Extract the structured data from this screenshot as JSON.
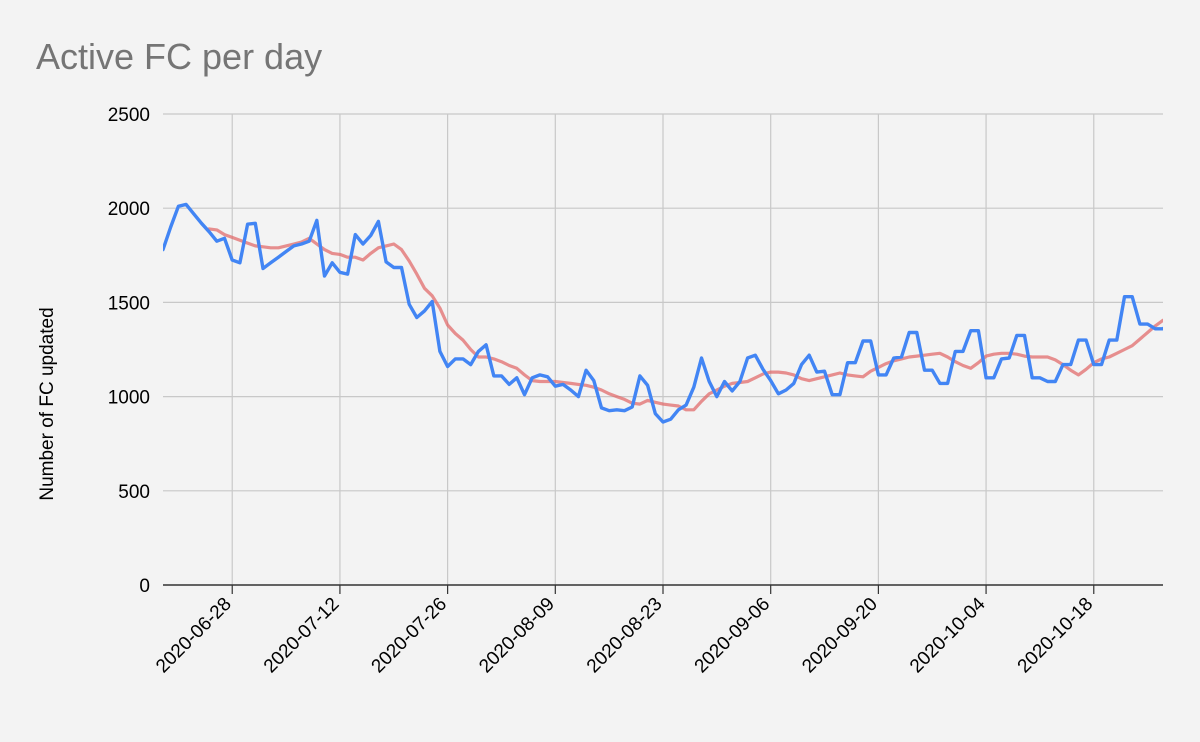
{
  "chart_data": {
    "type": "line",
    "title": "Active FC per day",
    "xlabel": "",
    "ylabel": "Number of FC updated",
    "ylim": [
      0,
      2500
    ],
    "yticks": [
      0,
      500,
      1000,
      1500,
      2000,
      2500
    ],
    "xlim": [
      "2020-06-19",
      "2020-10-27"
    ],
    "xticks": [
      "2020-06-28",
      "2020-07-12",
      "2020-07-26",
      "2020-08-09",
      "2020-08-23",
      "2020-09-06",
      "2020-09-20",
      "2020-10-04",
      "2020-10-18"
    ],
    "grid": true,
    "legend": "none",
    "series": [
      {
        "color": "#4285f4",
        "points": [
          [
            "2020-06-19",
            1780
          ],
          [
            "2020-06-20",
            1900
          ],
          [
            "2020-06-21",
            2010
          ],
          [
            "2020-06-22",
            2020
          ],
          [
            "2020-06-23",
            1970
          ],
          [
            "2020-06-24",
            1920
          ],
          [
            "2020-06-25",
            1875
          ],
          [
            "2020-06-26",
            1825
          ],
          [
            "2020-06-27",
            1840
          ],
          [
            "2020-06-28",
            1725
          ],
          [
            "2020-06-29",
            1710
          ],
          [
            "2020-06-30",
            1915
          ],
          [
            "2020-07-01",
            1920
          ],
          [
            "2020-07-02",
            1680
          ],
          [
            "2020-07-03",
            1710
          ],
          [
            "2020-07-04",
            1740
          ],
          [
            "2020-07-05",
            1770
          ],
          [
            "2020-07-06",
            1800
          ],
          [
            "2020-07-07",
            1810
          ],
          [
            "2020-07-08",
            1825
          ],
          [
            "2020-07-09",
            1935
          ],
          [
            "2020-07-10",
            1640
          ],
          [
            "2020-07-11",
            1710
          ],
          [
            "2020-07-12",
            1660
          ],
          [
            "2020-07-13",
            1650
          ],
          [
            "2020-07-14",
            1860
          ],
          [
            "2020-07-15",
            1810
          ],
          [
            "2020-07-16",
            1855
          ],
          [
            "2020-07-17",
            1930
          ],
          [
            "2020-07-18",
            1715
          ],
          [
            "2020-07-19",
            1685
          ],
          [
            "2020-07-20",
            1685
          ],
          [
            "2020-07-21",
            1490
          ],
          [
            "2020-07-22",
            1420
          ],
          [
            "2020-07-23",
            1455
          ],
          [
            "2020-07-24",
            1505
          ],
          [
            "2020-07-25",
            1240
          ],
          [
            "2020-07-26",
            1160
          ],
          [
            "2020-07-27",
            1200
          ],
          [
            "2020-07-28",
            1200
          ],
          [
            "2020-07-29",
            1170
          ],
          [
            "2020-07-30",
            1240
          ],
          [
            "2020-07-31",
            1275
          ],
          [
            "2020-08-01",
            1110
          ],
          [
            "2020-08-02",
            1110
          ],
          [
            "2020-08-03",
            1065
          ],
          [
            "2020-08-04",
            1100
          ],
          [
            "2020-08-05",
            1010
          ],
          [
            "2020-08-06",
            1100
          ],
          [
            "2020-08-07",
            1115
          ],
          [
            "2020-08-08",
            1105
          ],
          [
            "2020-08-09",
            1055
          ],
          [
            "2020-08-10",
            1065
          ],
          [
            "2020-08-11",
            1035
          ],
          [
            "2020-08-12",
            1000
          ],
          [
            "2020-08-13",
            1140
          ],
          [
            "2020-08-14",
            1085
          ],
          [
            "2020-08-15",
            940
          ],
          [
            "2020-08-16",
            925
          ],
          [
            "2020-08-17",
            930
          ],
          [
            "2020-08-18",
            925
          ],
          [
            "2020-08-19",
            945
          ],
          [
            "2020-08-20",
            1110
          ],
          [
            "2020-08-21",
            1060
          ],
          [
            "2020-08-22",
            910
          ],
          [
            "2020-08-23",
            865
          ],
          [
            "2020-08-24",
            880
          ],
          [
            "2020-08-25",
            930
          ],
          [
            "2020-08-26",
            955
          ],
          [
            "2020-08-27",
            1050
          ],
          [
            "2020-08-28",
            1205
          ],
          [
            "2020-08-29",
            1080
          ],
          [
            "2020-08-30",
            1000
          ],
          [
            "2020-08-31",
            1080
          ],
          [
            "2020-09-01",
            1030
          ],
          [
            "2020-09-02",
            1080
          ],
          [
            "2020-09-03",
            1205
          ],
          [
            "2020-09-04",
            1220
          ],
          [
            "2020-09-05",
            1145
          ],
          [
            "2020-09-06",
            1085
          ],
          [
            "2020-09-07",
            1015
          ],
          [
            "2020-09-08",
            1035
          ],
          [
            "2020-09-09",
            1070
          ],
          [
            "2020-09-10",
            1170
          ],
          [
            "2020-09-11",
            1220
          ],
          [
            "2020-09-12",
            1130
          ],
          [
            "2020-09-13",
            1135
          ],
          [
            "2020-09-14",
            1010
          ],
          [
            "2020-09-15",
            1010
          ],
          [
            "2020-09-16",
            1180
          ],
          [
            "2020-09-17",
            1180
          ],
          [
            "2020-09-18",
            1295
          ],
          [
            "2020-09-19",
            1295
          ],
          [
            "2020-09-20",
            1115
          ],
          [
            "2020-09-21",
            1115
          ],
          [
            "2020-09-22",
            1205
          ],
          [
            "2020-09-23",
            1210
          ],
          [
            "2020-09-24",
            1340
          ],
          [
            "2020-09-25",
            1340
          ],
          [
            "2020-09-26",
            1140
          ],
          [
            "2020-09-27",
            1140
          ],
          [
            "2020-09-28",
            1070
          ],
          [
            "2020-09-29",
            1070
          ],
          [
            "2020-09-30",
            1240
          ],
          [
            "2020-10-01",
            1240
          ],
          [
            "2020-10-02",
            1350
          ],
          [
            "2020-10-03",
            1350
          ],
          [
            "2020-10-04",
            1100
          ],
          [
            "2020-10-05",
            1100
          ],
          [
            "2020-10-06",
            1200
          ],
          [
            "2020-10-07",
            1205
          ],
          [
            "2020-10-08",
            1325
          ],
          [
            "2020-10-09",
            1325
          ],
          [
            "2020-10-10",
            1100
          ],
          [
            "2020-10-11",
            1100
          ],
          [
            "2020-10-12",
            1080
          ],
          [
            "2020-10-13",
            1080
          ],
          [
            "2020-10-14",
            1170
          ],
          [
            "2020-10-15",
            1170
          ],
          [
            "2020-10-16",
            1300
          ],
          [
            "2020-10-17",
            1300
          ],
          [
            "2020-10-18",
            1170
          ],
          [
            "2020-10-19",
            1170
          ],
          [
            "2020-10-20",
            1300
          ],
          [
            "2020-10-21",
            1300
          ],
          [
            "2020-10-22",
            1530
          ],
          [
            "2020-10-23",
            1530
          ],
          [
            "2020-10-24",
            1385
          ],
          [
            "2020-10-25",
            1385
          ],
          [
            "2020-10-26",
            1360
          ],
          [
            "2020-10-27",
            1360
          ],
          [
            "2020-10-28",
            1390
          ],
          [
            "2020-10-29",
            1385
          ]
        ]
      },
      {
        "color": "#e06666",
        "points": [
          [
            "2020-06-25",
            1890
          ],
          [
            "2020-06-26",
            1885
          ],
          [
            "2020-06-27",
            1860
          ],
          [
            "2020-06-28",
            1845
          ],
          [
            "2020-06-29",
            1830
          ],
          [
            "2020-06-30",
            1815
          ],
          [
            "2020-07-01",
            1800
          ],
          [
            "2020-07-02",
            1795
          ],
          [
            "2020-07-03",
            1790
          ],
          [
            "2020-07-04",
            1790
          ],
          [
            "2020-07-05",
            1800
          ],
          [
            "2020-07-06",
            1810
          ],
          [
            "2020-07-07",
            1820
          ],
          [
            "2020-07-08",
            1840
          ],
          [
            "2020-07-09",
            1810
          ],
          [
            "2020-07-10",
            1780
          ],
          [
            "2020-07-11",
            1760
          ],
          [
            "2020-07-12",
            1755
          ],
          [
            "2020-07-13",
            1740
          ],
          [
            "2020-07-14",
            1740
          ],
          [
            "2020-07-15",
            1725
          ],
          [
            "2020-07-16",
            1760
          ],
          [
            "2020-07-17",
            1790
          ],
          [
            "2020-07-18",
            1800
          ],
          [
            "2020-07-19",
            1810
          ],
          [
            "2020-07-20",
            1780
          ],
          [
            "2020-07-21",
            1720
          ],
          [
            "2020-07-22",
            1650
          ],
          [
            "2020-07-23",
            1575
          ],
          [
            "2020-07-24",
            1535
          ],
          [
            "2020-07-25",
            1470
          ],
          [
            "2020-07-26",
            1380
          ],
          [
            "2020-07-27",
            1335
          ],
          [
            "2020-07-28",
            1300
          ],
          [
            "2020-07-29",
            1250
          ],
          [
            "2020-07-30",
            1210
          ],
          [
            "2020-07-31",
            1210
          ],
          [
            "2020-08-01",
            1200
          ],
          [
            "2020-08-02",
            1185
          ],
          [
            "2020-08-03",
            1165
          ],
          [
            "2020-08-04",
            1150
          ],
          [
            "2020-08-05",
            1115
          ],
          [
            "2020-08-06",
            1085
          ],
          [
            "2020-08-07",
            1080
          ],
          [
            "2020-08-08",
            1080
          ],
          [
            "2020-08-09",
            1080
          ],
          [
            "2020-08-10",
            1075
          ],
          [
            "2020-08-11",
            1070
          ],
          [
            "2020-08-12",
            1065
          ],
          [
            "2020-08-13",
            1060
          ],
          [
            "2020-08-14",
            1050
          ],
          [
            "2020-08-15",
            1035
          ],
          [
            "2020-08-16",
            1015
          ],
          [
            "2020-08-17",
            1000
          ],
          [
            "2020-08-18",
            985
          ],
          [
            "2020-08-19",
            965
          ],
          [
            "2020-08-20",
            960
          ],
          [
            "2020-08-21",
            980
          ],
          [
            "2020-08-22",
            970
          ],
          [
            "2020-08-23",
            960
          ],
          [
            "2020-08-24",
            955
          ],
          [
            "2020-08-25",
            950
          ],
          [
            "2020-08-26",
            930
          ],
          [
            "2020-08-27",
            930
          ],
          [
            "2020-08-28",
            975
          ],
          [
            "2020-08-29",
            1015
          ],
          [
            "2020-08-30",
            1035
          ],
          [
            "2020-08-31",
            1055
          ],
          [
            "2020-09-01",
            1070
          ],
          [
            "2020-09-02",
            1075
          ],
          [
            "2020-09-03",
            1080
          ],
          [
            "2020-09-04",
            1100
          ],
          [
            "2020-09-05",
            1120
          ],
          [
            "2020-09-06",
            1130
          ],
          [
            "2020-09-07",
            1130
          ],
          [
            "2020-09-08",
            1125
          ],
          [
            "2020-09-09",
            1115
          ],
          [
            "2020-09-10",
            1095
          ],
          [
            "2020-09-11",
            1085
          ],
          [
            "2020-09-12",
            1095
          ],
          [
            "2020-09-13",
            1105
          ],
          [
            "2020-09-14",
            1115
          ],
          [
            "2020-09-15",
            1125
          ],
          [
            "2020-09-16",
            1115
          ],
          [
            "2020-09-17",
            1110
          ],
          [
            "2020-09-18",
            1105
          ],
          [
            "2020-09-19",
            1135
          ],
          [
            "2020-09-20",
            1155
          ],
          [
            "2020-09-21",
            1175
          ],
          [
            "2020-09-22",
            1190
          ],
          [
            "2020-09-23",
            1200
          ],
          [
            "2020-09-24",
            1210
          ],
          [
            "2020-09-25",
            1215
          ],
          [
            "2020-09-26",
            1220
          ],
          [
            "2020-09-27",
            1225
          ],
          [
            "2020-09-28",
            1230
          ],
          [
            "2020-09-29",
            1210
          ],
          [
            "2020-09-30",
            1185
          ],
          [
            "2020-10-01",
            1165
          ],
          [
            "2020-10-02",
            1150
          ],
          [
            "2020-10-03",
            1180
          ],
          [
            "2020-10-04",
            1215
          ],
          [
            "2020-10-05",
            1225
          ],
          [
            "2020-10-06",
            1230
          ],
          [
            "2020-10-07",
            1230
          ],
          [
            "2020-10-08",
            1225
          ],
          [
            "2020-10-09",
            1215
          ],
          [
            "2020-10-10",
            1210
          ],
          [
            "2020-10-11",
            1210
          ],
          [
            "2020-10-12",
            1210
          ],
          [
            "2020-10-13",
            1195
          ],
          [
            "2020-10-14",
            1170
          ],
          [
            "2020-10-15",
            1140
          ],
          [
            "2020-10-16",
            1115
          ],
          [
            "2020-10-17",
            1145
          ],
          [
            "2020-10-18",
            1180
          ],
          [
            "2020-10-19",
            1200
          ],
          [
            "2020-10-20",
            1210
          ],
          [
            "2020-10-21",
            1230
          ],
          [
            "2020-10-22",
            1250
          ],
          [
            "2020-10-23",
            1270
          ],
          [
            "2020-10-24",
            1305
          ],
          [
            "2020-10-25",
            1340
          ],
          [
            "2020-10-26",
            1375
          ],
          [
            "2020-10-27",
            1405
          ],
          [
            "2020-10-28",
            1415
          ],
          [
            "2020-10-29",
            1420
          ],
          [
            "2020-10-30",
            1395
          ],
          [
            "2020-10-31",
            1385
          ]
        ]
      }
    ]
  }
}
